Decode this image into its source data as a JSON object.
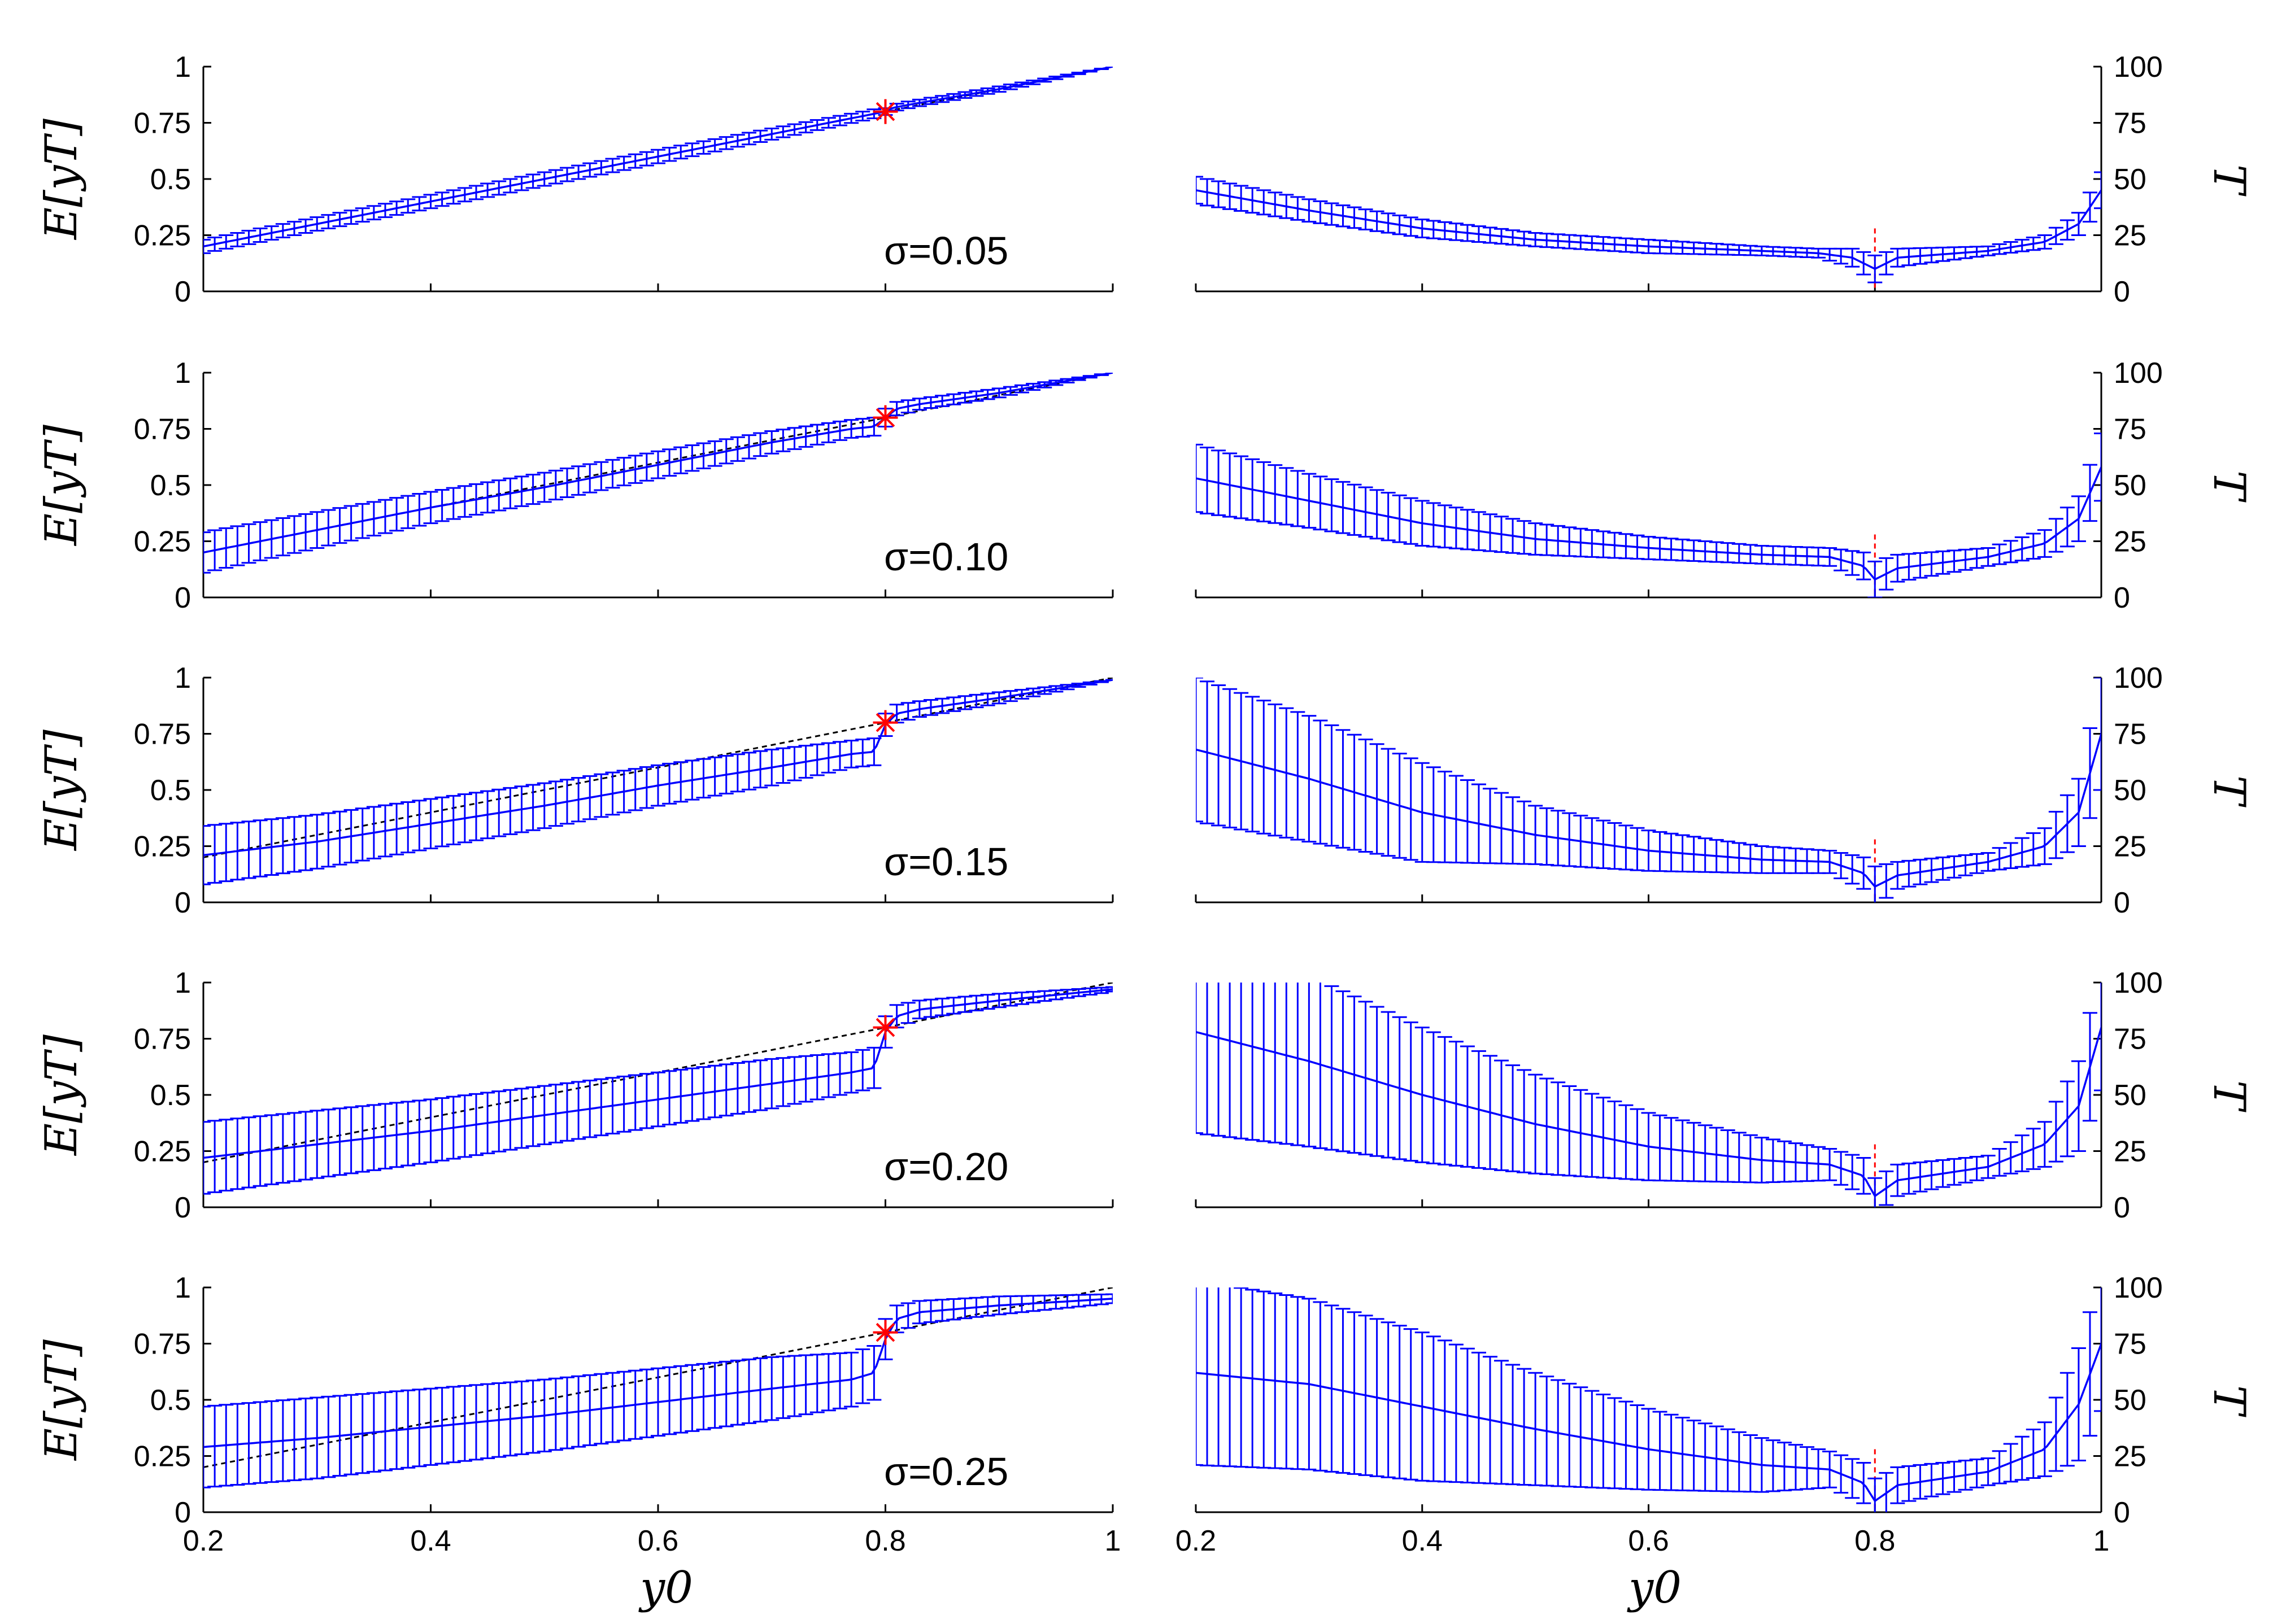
{
  "chart_data": {
    "type": "line",
    "layout": "5 rows x 2 columns",
    "x_label": "y0",
    "x_ticks": [
      "0.2",
      "0.4",
      "0.6",
      "0.8",
      "1"
    ],
    "xlim": [
      0.2,
      1.0
    ],
    "left_column": {
      "ylabel": "E[yT]",
      "ylim": [
        0,
        1
      ],
      "y_ticks": [
        "0",
        "0.25",
        "0.5",
        "0.75",
        "1"
      ],
      "reference_line": "dashed y = y0",
      "marker": {
        "x": 0.8,
        "y": 0.8,
        "symbol": "*",
        "color": "#ff0000"
      }
    },
    "right_column": {
      "ylabel": "T",
      "ylim": [
        0,
        100
      ],
      "y_ticks": [
        "0",
        "25",
        "50",
        "75",
        "100"
      ],
      "reference_line": "dashed vertical at y0 = 0.8"
    },
    "series_color": "#0000ff",
    "marker_color": "#ff0000",
    "panels": [
      {
        "sigma_label": "σ=0.05",
        "left_series": {
          "x": [
            0.2,
            0.3,
            0.4,
            0.5,
            0.6,
            0.7,
            0.78,
            0.795,
            0.8,
            0.805,
            0.82,
            0.9,
            1.0
          ],
          "mean": [
            0.2,
            0.3,
            0.4,
            0.5,
            0.6,
            0.7,
            0.78,
            0.795,
            0.8,
            0.815,
            0.83,
            0.9,
            1.0
          ],
          "err": [
            0.03,
            0.03,
            0.03,
            0.03,
            0.03,
            0.025,
            0.02,
            0.02,
            0.015,
            0.015,
            0.015,
            0.012,
            0.0
          ]
        },
        "right_series": {
          "x": [
            0.2,
            0.3,
            0.4,
            0.5,
            0.6,
            0.7,
            0.75,
            0.78,
            0.8,
            0.82,
            0.9,
            0.95,
            0.98,
            1.0
          ],
          "mean": [
            45,
            36,
            28,
            23,
            20,
            18,
            17,
            15,
            10,
            15,
            18,
            22,
            30,
            45
          ],
          "err": [
            6,
            5,
            4,
            3,
            3,
            2,
            2,
            4,
            6,
            4,
            2,
            3,
            5,
            8
          ]
        }
      },
      {
        "sigma_label": "σ=0.10",
        "left_series": {
          "x": [
            0.2,
            0.3,
            0.4,
            0.5,
            0.6,
            0.7,
            0.77,
            0.79,
            0.8,
            0.81,
            0.83,
            0.9,
            1.0
          ],
          "mean": [
            0.2,
            0.3,
            0.4,
            0.49,
            0.59,
            0.69,
            0.75,
            0.76,
            0.8,
            0.84,
            0.86,
            0.91,
            1.0
          ],
          "err": [
            0.09,
            0.08,
            0.07,
            0.065,
            0.06,
            0.05,
            0.04,
            0.04,
            0.04,
            0.03,
            0.025,
            0.02,
            0.0
          ]
        },
        "right_series": {
          "x": [
            0.2,
            0.3,
            0.4,
            0.5,
            0.6,
            0.7,
            0.76,
            0.79,
            0.8,
            0.82,
            0.9,
            0.95,
            0.98,
            1.0
          ],
          "mean": [
            53,
            43,
            33,
            26,
            22,
            19,
            18,
            14,
            8,
            13,
            18,
            24,
            35,
            58
          ],
          "err": [
            15,
            12,
            10,
            7,
            5,
            4,
            4,
            6,
            8,
            6,
            4,
            6,
            10,
            15
          ]
        }
      },
      {
        "sigma_label": "σ=0.15",
        "left_series": {
          "x": [
            0.2,
            0.3,
            0.4,
            0.5,
            0.6,
            0.7,
            0.77,
            0.79,
            0.8,
            0.81,
            0.83,
            0.9,
            1.0
          ],
          "mean": [
            0.21,
            0.27,
            0.35,
            0.43,
            0.52,
            0.6,
            0.66,
            0.67,
            0.79,
            0.84,
            0.86,
            0.91,
            0.99
          ],
          "err": [
            0.13,
            0.12,
            0.11,
            0.1,
            0.09,
            0.08,
            0.06,
            0.06,
            0.05,
            0.04,
            0.035,
            0.025,
            0.0
          ]
        },
        "right_series": {
          "x": [
            0.2,
            0.3,
            0.4,
            0.5,
            0.6,
            0.7,
            0.76,
            0.79,
            0.8,
            0.82,
            0.9,
            0.95,
            0.98,
            1.0
          ],
          "mean": [
            68,
            55,
            40,
            30,
            23,
            19,
            18,
            13,
            7,
            12,
            18,
            25,
            40,
            75
          ],
          "err": [
            32,
            28,
            22,
            13,
            9,
            6,
            5,
            7,
            9,
            6,
            4,
            8,
            15,
            25
          ]
        }
      },
      {
        "sigma_label": "σ=0.20",
        "left_series": {
          "x": [
            0.2,
            0.3,
            0.4,
            0.5,
            0.6,
            0.7,
            0.77,
            0.79,
            0.8,
            0.81,
            0.83,
            0.9,
            1.0
          ],
          "mean": [
            0.22,
            0.28,
            0.34,
            0.41,
            0.48,
            0.55,
            0.6,
            0.62,
            0.78,
            0.85,
            0.88,
            0.92,
            0.97
          ],
          "err": [
            0.16,
            0.15,
            0.14,
            0.13,
            0.12,
            0.11,
            0.09,
            0.09,
            0.07,
            0.05,
            0.04,
            0.03,
            0.01
          ]
        },
        "right_series": {
          "x": [
            0.2,
            0.3,
            0.4,
            0.5,
            0.6,
            0.7,
            0.76,
            0.79,
            0.8,
            0.82,
            0.9,
            0.95,
            0.98,
            1.0
          ],
          "mean": [
            78,
            65,
            50,
            37,
            27,
            21,
            19,
            14,
            5,
            12,
            18,
            28,
            45,
            80
          ],
          "err": [
            45,
            38,
            30,
            22,
            15,
            10,
            7,
            8,
            8,
            7,
            5,
            10,
            20,
            28
          ]
        }
      },
      {
        "sigma_label": "σ=0.25",
        "left_series": {
          "x": [
            0.2,
            0.3,
            0.4,
            0.5,
            0.6,
            0.7,
            0.77,
            0.79,
            0.8,
            0.81,
            0.83,
            0.9,
            1.0
          ],
          "mean": [
            0.29,
            0.33,
            0.38,
            0.43,
            0.49,
            0.55,
            0.59,
            0.62,
            0.77,
            0.86,
            0.89,
            0.92,
            0.95
          ],
          "err": [
            0.18,
            0.18,
            0.17,
            0.16,
            0.15,
            0.14,
            0.12,
            0.12,
            0.09,
            0.06,
            0.05,
            0.04,
            0.02
          ]
        },
        "right_series": {
          "x": [
            0.2,
            0.3,
            0.4,
            0.5,
            0.6,
            0.7,
            0.76,
            0.79,
            0.8,
            0.82,
            0.9,
            0.95,
            0.98,
            1.0
          ],
          "mean": [
            62,
            57,
            47,
            37,
            28,
            21,
            19,
            13,
            5,
            12,
            18,
            28,
            48,
            75
          ],
          "err": [
            41,
            38,
            33,
            25,
            18,
            12,
            8,
            9,
            10,
            8,
            6,
            12,
            25,
            30
          ]
        }
      }
    ]
  }
}
